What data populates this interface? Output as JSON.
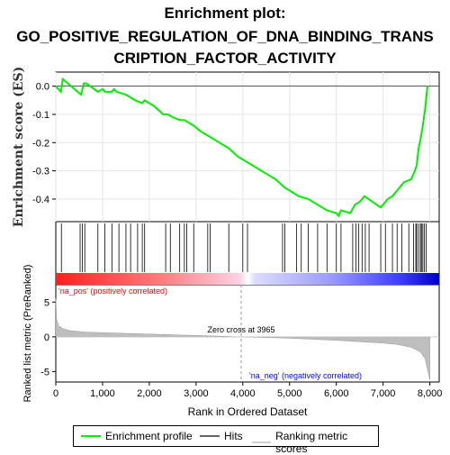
{
  "title_line1": "Enrichment plot:",
  "title_line2": "GO_POSITIVE_REGULATION_OF_DNA_BINDING_TRANS",
  "title_line3": "CRIPTION_FACTOR_ACTIVITY",
  "colors": {
    "enrichment": "#00ee00",
    "hits": "#000000",
    "ranking": "#bebebe",
    "pos_label": "#ff0000",
    "neg_label": "#0000ff"
  },
  "chart_data": [
    {
      "type": "line",
      "panel": "enrichment",
      "ylabel": "Enrichment score (ES)",
      "yticks": [
        0.0,
        -0.1,
        -0.2,
        -0.3,
        -0.4
      ],
      "ytick_labels": [
        "0.0",
        "-0.1",
        "-0.2",
        "-0.3",
        "-0.4"
      ],
      "ylim": [
        -0.48,
        0.05
      ],
      "xlim": [
        0,
        8200
      ],
      "grid": true,
      "x": [
        0,
        110,
        150,
        540,
        600,
        650,
        900,
        1000,
        1050,
        1200,
        1250,
        1300,
        1500,
        1700,
        1850,
        1900,
        2000,
        2100,
        2300,
        2400,
        2500,
        2650,
        2750,
        2850,
        2950,
        3100,
        3300,
        3500,
        3700,
        3900,
        4100,
        4300,
        4500,
        4700,
        4900,
        5000,
        5200,
        5400,
        5600,
        5800,
        6000,
        6050,
        6100,
        6300,
        6400,
        6500,
        6600,
        6950,
        7100,
        7200,
        7300,
        7350,
        7450,
        7600,
        7680,
        7720,
        7760,
        7800,
        7850,
        7900,
        7950
      ],
      "values": [
        0.0,
        -0.02,
        0.025,
        -0.03,
        0.01,
        0.01,
        -0.02,
        -0.01,
        -0.02,
        -0.02,
        -0.01,
        -0.02,
        -0.03,
        -0.05,
        -0.06,
        -0.05,
        -0.06,
        -0.07,
        -0.1,
        -0.1,
        -0.11,
        -0.12,
        -0.12,
        -0.13,
        -0.14,
        -0.16,
        -0.18,
        -0.2,
        -0.22,
        -0.25,
        -0.27,
        -0.29,
        -0.31,
        -0.33,
        -0.36,
        -0.37,
        -0.39,
        -0.4,
        -0.42,
        -0.44,
        -0.45,
        -0.46,
        -0.44,
        -0.45,
        -0.42,
        -0.41,
        -0.39,
        -0.43,
        -0.4,
        -0.39,
        -0.37,
        -0.36,
        -0.34,
        -0.33,
        -0.3,
        -0.28,
        -0.22,
        -0.19,
        -0.14,
        -0.08,
        0.0
      ]
    },
    {
      "type": "scatter",
      "panel": "hits",
      "hit_positions": [
        120,
        520,
        570,
        620,
        900,
        1050,
        1200,
        1350,
        1500,
        1600,
        1750,
        1850,
        1900,
        2350,
        2450,
        2650,
        2750,
        2800,
        2950,
        3250,
        3300,
        3700,
        4000,
        4100,
        4850,
        4900,
        5150,
        5250,
        5400,
        5600,
        5800,
        6000,
        6100,
        6350,
        6420,
        6480,
        6550,
        6620,
        6700,
        6950,
        7050,
        7200,
        7300,
        7400,
        7550,
        7650,
        7700,
        7720,
        7760,
        7800,
        7820,
        7850,
        7880,
        7920
      ]
    },
    {
      "type": "area",
      "panel": "ranking",
      "xlabel": "Rank in Ordered Dataset",
      "ylabel": "Ranked list metric (PreRanked)",
      "yticks": [
        5,
        0,
        -5
      ],
      "ytick_labels": [
        "5",
        "0",
        "-5"
      ],
      "ylim": [
        -6.5,
        7.5
      ],
      "xticks": [
        0,
        1000,
        2000,
        3000,
        4000,
        5000,
        6000,
        7000,
        8000
      ],
      "xtick_labels": [
        "0",
        "1,000",
        "2,000",
        "3,000",
        "4,000",
        "5,000",
        "6,000",
        "7,000",
        "8,000"
      ],
      "x": [
        0,
        20,
        60,
        150,
        300,
        600,
        1000,
        2000,
        3000,
        3965,
        5000,
        6000,
        6500,
        7000,
        7300,
        7600,
        7800,
        7900,
        7960,
        8000
      ],
      "values": [
        5.5,
        2.5,
        1.6,
        1.2,
        0.9,
        0.7,
        0.6,
        0.4,
        0.2,
        0.0,
        -0.2,
        -0.5,
        -0.7,
        -0.9,
        -1.1,
        -1.5,
        -2.2,
        -3.2,
        -5.0,
        -6.2
      ],
      "zero_cross_label": "Zero cross at 3965",
      "zero_cross": 3965,
      "pos_label": "'na_pos' (positively correlated)",
      "neg_label": "'na_neg' (negatively correlated)"
    }
  ],
  "legend": {
    "items": [
      "Enrichment profile",
      "Hits",
      "Ranking metric scores"
    ]
  }
}
